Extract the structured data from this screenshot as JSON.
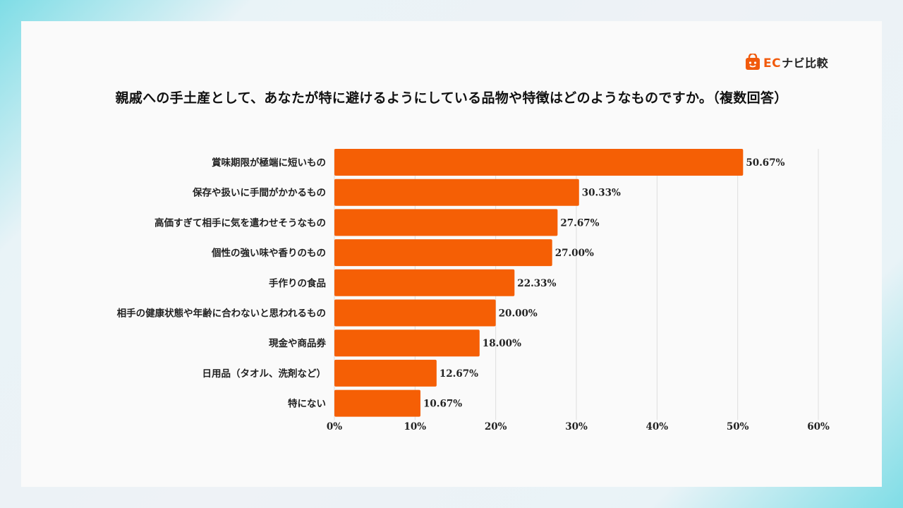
{
  "brand": {
    "logo_text_latin": "EC",
    "logo_text_jp": "ナビ比較",
    "accent": "#f15a0c"
  },
  "chart_data": {
    "type": "bar",
    "orientation": "horizontal",
    "title": "親戚への手土産として、あなたが特に避けるようにしている品物や特徴はどのようなものですか。（複数回答）",
    "categories": [
      "賞味期限が極端に短いもの",
      "保存や扱いに手間がかかるもの",
      "高価すぎて相手に気を遣わせそうなもの",
      "個性の強い味や香りのもの",
      "手作りの食品",
      "相手の健康状態や年齢に合わないと思われるもの",
      "現金や商品券",
      "日用品（タオル、洗剤など）",
      "特にない"
    ],
    "values": [
      50.67,
      30.33,
      27.67,
      27.0,
      22.33,
      20.0,
      18.0,
      12.67,
      10.67
    ],
    "value_labels": [
      "50.67%",
      "30.33%",
      "27.67%",
      "27.00%",
      "22.33%",
      "20.00%",
      "18.00%",
      "12.67%",
      "10.67%"
    ],
    "xlim": [
      0,
      60
    ],
    "xticks": [
      0,
      10,
      20,
      30,
      40,
      50,
      60
    ],
    "xtick_labels": [
      "0%",
      "10%",
      "20%",
      "30%",
      "40%",
      "50%",
      "60%"
    ],
    "bar_color": "#f55f05",
    "grid": true
  }
}
